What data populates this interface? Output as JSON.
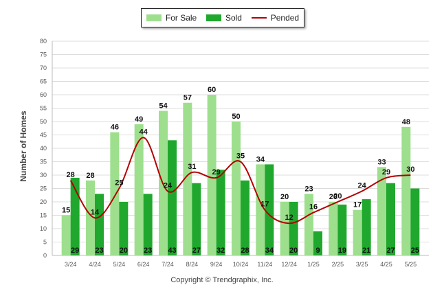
{
  "legend": {
    "items": [
      {
        "label": "For Sale",
        "color": "#9ddf8d",
        "kind": "bar"
      },
      {
        "label": "Sold",
        "color": "#1fa82d",
        "kind": "bar"
      },
      {
        "label": "Pended",
        "color": "#b30000",
        "kind": "line"
      }
    ]
  },
  "copyright": "Copyright © Trendgraphix, Inc.",
  "chart_data": {
    "type": "bar",
    "ylabel": "Number of Homes",
    "xlabel": "",
    "ylim": [
      0,
      80
    ],
    "yticks": [
      0,
      5,
      10,
      15,
      20,
      25,
      30,
      35,
      40,
      45,
      50,
      55,
      60,
      65,
      70,
      75,
      80
    ],
    "grid": true,
    "legend_position": "top-center",
    "categories": [
      "3/24",
      "4/24",
      "5/24",
      "6/24",
      "7/24",
      "8/24",
      "9/24",
      "10/24",
      "11/24",
      "12/24",
      "1/25",
      "2/25",
      "3/25",
      "4/25",
      "5/25"
    ],
    "series": [
      {
        "name": "For Sale",
        "type": "bar",
        "color": "#9ddf8d",
        "values": [
          15,
          28,
          46,
          49,
          54,
          57,
          60,
          50,
          34,
          20,
          23,
          20,
          17,
          33,
          48
        ]
      },
      {
        "name": "Sold",
        "type": "bar",
        "color": "#1fa82d",
        "values": [
          29,
          23,
          20,
          23,
          43,
          27,
          32,
          28,
          34,
          20,
          9,
          19,
          21,
          27,
          25
        ]
      },
      {
        "name": "Pended",
        "type": "line",
        "color": "#b30000",
        "values": [
          28,
          14,
          25,
          44,
          24,
          31,
          29,
          35,
          17,
          12,
          16,
          20,
          24,
          29,
          30
        ]
      }
    ]
  }
}
